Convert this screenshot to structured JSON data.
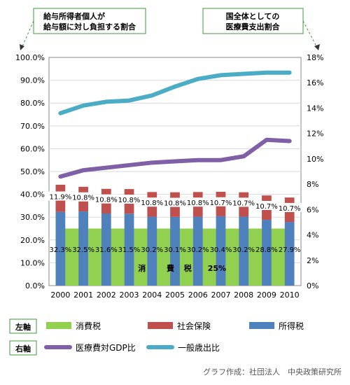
{
  "chart_data": {
    "type": "bar",
    "annotations": {
      "left_box": "給与所得者個人が\n給与額に対し負担する割合",
      "right_box": "国全体としての\n医療費支出割合",
      "consumption_tax_label": [
        "消",
        "費",
        "税",
        "25%"
      ],
      "credit": "グラフ作成：社団法人　中央政策研究所"
    },
    "categories": [
      "2000",
      "2001",
      "2002",
      "2003",
      "2004",
      "2005",
      "2006",
      "2007",
      "2008",
      "2009",
      "2010"
    ],
    "left_axis": {
      "name": "左軸",
      "ylim": [
        0,
        100
      ],
      "ticks": [
        "0.0%",
        "10.0%",
        "20.0%",
        "30.0%",
        "40.0%",
        "50.0%",
        "60.0%",
        "70.0%",
        "80.0%",
        "90.0%",
        "100.0%"
      ]
    },
    "right_axis": {
      "name": "右軸",
      "ylim": [
        0,
        18
      ],
      "ticks": [
        "0%",
        "2%",
        "4%",
        "6%",
        "8%",
        "10%",
        "12%",
        "14%",
        "16%",
        "18%"
      ]
    },
    "bar_series": [
      {
        "name": "所得税",
        "color": "#4f81bd",
        "values": [
          32.3,
          32.5,
          31.6,
          31.5,
          30.2,
          30.1,
          30.2,
          30.4,
          30.2,
          28.8,
          27.9
        ],
        "labels": [
          "32.3%",
          "32.5%",
          "31.6%",
          "31.5%",
          "30.2%",
          "30.1%",
          "30.2%",
          "30.4%",
          "30.2%",
          "28.8%",
          "27.9%"
        ]
      },
      {
        "name": "社会保険",
        "color": "#c0504d",
        "values": [
          11.9,
          10.8,
          10.8,
          10.8,
          10.8,
          10.8,
          10.8,
          10.7,
          10.7,
          10.7,
          10.7
        ],
        "labels": [
          "11.9%",
          "10.8%",
          "10.8%",
          "10.8%",
          "10.8%",
          "10.8%",
          "10.8%",
          "10.7%",
          "10.7%",
          "10.7%",
          "10.7%"
        ]
      }
    ],
    "area_series": {
      "name": "消費税",
      "color": "#92d050",
      "value": 25
    },
    "line_series": [
      {
        "name": "医療費対GDP比",
        "color": "#7f5fa5",
        "values": [
          8.6,
          9.1,
          9.3,
          9.5,
          9.7,
          9.8,
          9.9,
          9.9,
          10.2,
          11.5,
          11.4
        ]
      },
      {
        "name": "一般歳出比",
        "color": "#4bacc6",
        "values": [
          13.6,
          14.2,
          14.5,
          14.6,
          15.0,
          15.7,
          16.3,
          16.6,
          16.7,
          16.8,
          16.8
        ]
      }
    ],
    "legend": {
      "left_tag": "左軸",
      "right_tag": "右軸",
      "left_items": [
        "消費税",
        "社会保険",
        "所得税"
      ],
      "right_items": [
        "医療費対GDP比",
        "一般歳出比"
      ]
    },
    "grid": true
  }
}
